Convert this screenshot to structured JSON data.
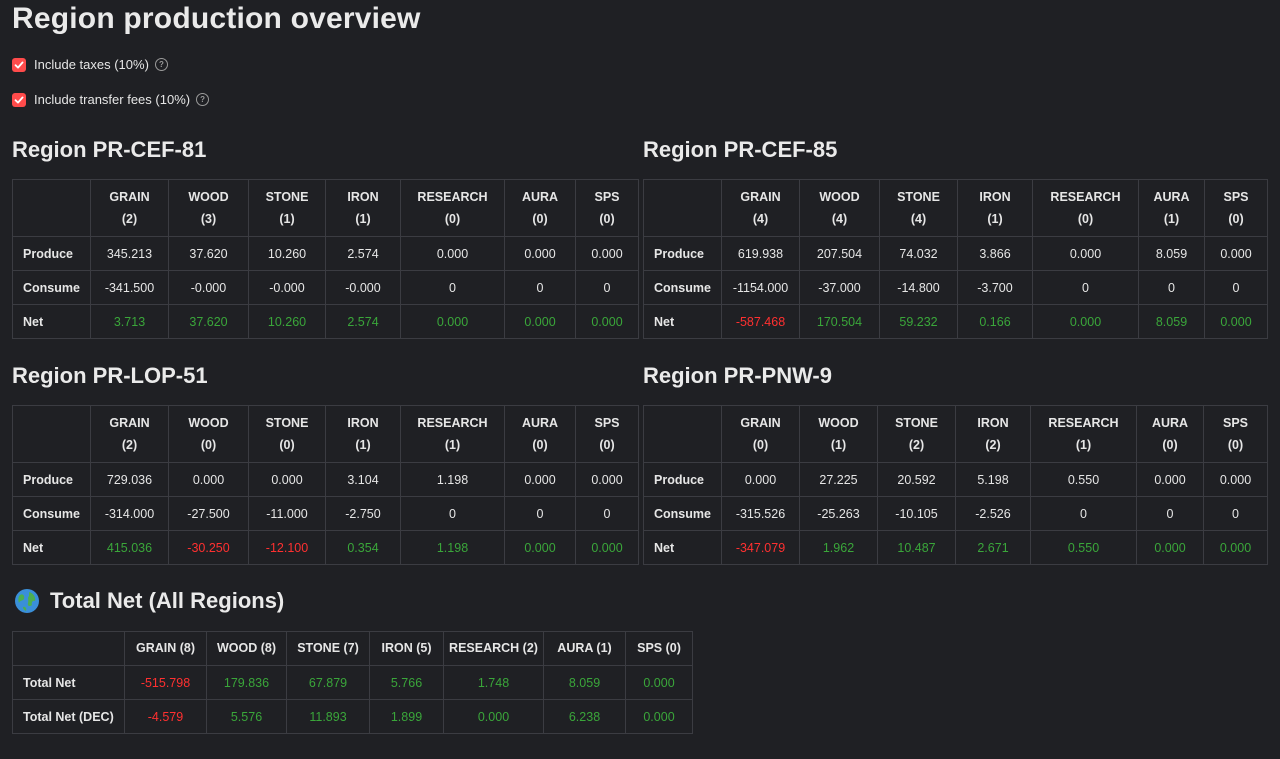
{
  "title": "Region production overview",
  "checkboxes": [
    {
      "label": "Include taxes (10%)",
      "checked": true
    },
    {
      "label": "Include transfer fees (10%)",
      "checked": true
    }
  ],
  "accent_color": "#ff4b4b",
  "positive_color": "#3aa63a",
  "negative_color": "#ff3030",
  "row_labels": [
    "Produce",
    "Consume",
    "Net"
  ],
  "regions": [
    {
      "title": "Region PR-CEF-81",
      "columns": [
        [
          "GRAIN",
          "(2)"
        ],
        [
          "WOOD",
          "(3)"
        ],
        [
          "STONE",
          "(1)"
        ],
        [
          "IRON",
          "(1)"
        ],
        [
          "RESEARCH",
          "(0)"
        ],
        [
          "AURA",
          "(0)"
        ],
        [
          "SPS",
          "(0)"
        ]
      ],
      "produce": [
        "345.213",
        "37.620",
        "10.260",
        "2.574",
        "0.000",
        "0.000",
        "0.000"
      ],
      "consume": [
        "-341.500",
        "-0.000",
        "-0.000",
        "-0.000",
        "0",
        "0",
        "0"
      ],
      "net": [
        "3.713",
        "37.620",
        "10.260",
        "2.574",
        "0.000",
        "0.000",
        "0.000"
      ]
    },
    {
      "title": "Region PR-CEF-85",
      "columns": [
        [
          "GRAIN",
          "(4)"
        ],
        [
          "WOOD",
          "(4)"
        ],
        [
          "STONE",
          "(4)"
        ],
        [
          "IRON",
          "(1)"
        ],
        [
          "RESEARCH",
          "(0)"
        ],
        [
          "AURA",
          "(1)"
        ],
        [
          "SPS",
          "(0)"
        ]
      ],
      "produce": [
        "619.938",
        "207.504",
        "74.032",
        "3.866",
        "0.000",
        "8.059",
        "0.000"
      ],
      "consume": [
        "-1154.000",
        "-37.000",
        "-14.800",
        "-3.700",
        "0",
        "0",
        "0"
      ],
      "net": [
        "-587.468",
        "170.504",
        "59.232",
        "0.166",
        "0.000",
        "8.059",
        "0.000"
      ]
    },
    {
      "title": "Region PR-LOP-51",
      "columns": [
        [
          "GRAIN",
          "(2)"
        ],
        [
          "WOOD",
          "(0)"
        ],
        [
          "STONE",
          "(0)"
        ],
        [
          "IRON",
          "(1)"
        ],
        [
          "RESEARCH",
          "(1)"
        ],
        [
          "AURA",
          "(0)"
        ],
        [
          "SPS",
          "(0)"
        ]
      ],
      "produce": [
        "729.036",
        "0.000",
        "0.000",
        "3.104",
        "1.198",
        "0.000",
        "0.000"
      ],
      "consume": [
        "-314.000",
        "-27.500",
        "-11.000",
        "-2.750",
        "0",
        "0",
        "0"
      ],
      "net": [
        "415.036",
        "-30.250",
        "-12.100",
        "0.354",
        "1.198",
        "0.000",
        "0.000"
      ]
    },
    {
      "title": "Region PR-PNW-9",
      "columns": [
        [
          "GRAIN",
          "(0)"
        ],
        [
          "WOOD",
          "(1)"
        ],
        [
          "STONE",
          "(2)"
        ],
        [
          "IRON",
          "(2)"
        ],
        [
          "RESEARCH",
          "(1)"
        ],
        [
          "AURA",
          "(0)"
        ],
        [
          "SPS",
          "(0)"
        ]
      ],
      "produce": [
        "0.000",
        "27.225",
        "20.592",
        "5.198",
        "0.550",
        "0.000",
        "0.000"
      ],
      "consume": [
        "-315.526",
        "-25.263",
        "-10.105",
        "-2.526",
        "0",
        "0",
        "0"
      ],
      "net": [
        "-347.079",
        "1.962",
        "10.487",
        "2.671",
        "0.550",
        "0.000",
        "0.000"
      ]
    }
  ],
  "total": {
    "title": "Total Net (All Regions)",
    "icon": "globe-icon",
    "columns": [
      "GRAIN (8)",
      "WOOD (8)",
      "STONE (7)",
      "IRON (5)",
      "RESEARCH (2)",
      "AURA (1)",
      "SPS (0)"
    ],
    "rows": [
      {
        "label": "Total Net",
        "values": [
          "-515.798",
          "179.836",
          "67.879",
          "5.766",
          "1.748",
          "8.059",
          "0.000"
        ]
      },
      {
        "label": "Total Net (DEC)",
        "values": [
          "-4.579",
          "5.576",
          "11.893",
          "1.899",
          "0.000",
          "6.238",
          "0.000"
        ]
      }
    ]
  }
}
